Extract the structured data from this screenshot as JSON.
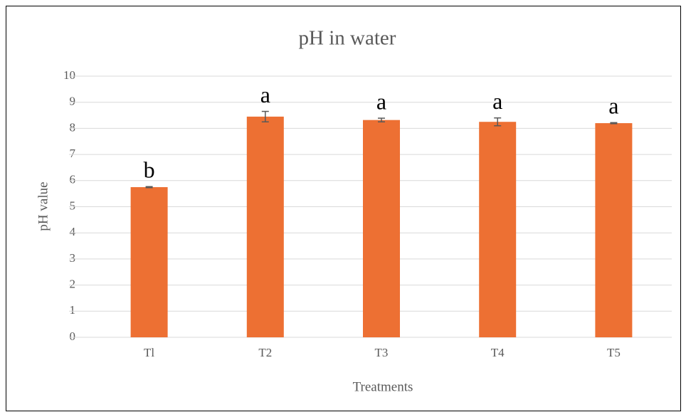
{
  "chart_data": {
    "type": "bar",
    "title": "pH in water",
    "x_label": "Treatments",
    "y_label": "pH value",
    "categories": [
      "Tl",
      "T2",
      "T3",
      "T4",
      "T5"
    ],
    "values": [
      5.75,
      8.45,
      8.32,
      8.25,
      8.2
    ],
    "errors": [
      0.02,
      0.2,
      0.07,
      0.15,
      0.02
    ],
    "annotations": [
      "b",
      "a",
      "a",
      "a",
      "a"
    ],
    "color": "#ed7033",
    "error_color": "#595959",
    "ylim": [
      0,
      10
    ],
    "yticks": [
      0,
      1,
      2,
      3,
      4,
      5,
      6,
      7,
      8,
      9,
      10
    ],
    "grid": true
  }
}
